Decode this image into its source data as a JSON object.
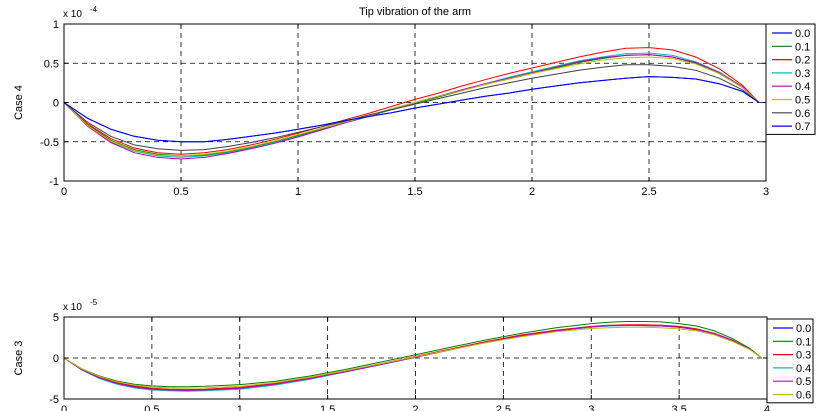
{
  "chart_data": [
    {
      "type": "line",
      "title": "Tip vibration of the arm",
      "xlabel": "",
      "ylabel": "Case 4",
      "y_scale_label": "x 10",
      "y_scale_exp": "-4",
      "xlim": [
        0,
        3
      ],
      "ylim": [
        -1,
        1
      ],
      "xticks": [
        0,
        0.5,
        1,
        1.5,
        2,
        2.5,
        3
      ],
      "xtick_labels": [
        "0",
        "0.5",
        "1",
        "1.5",
        "2",
        "2.5",
        "3"
      ],
      "yticks": [
        -1,
        -0.5,
        0,
        0.5,
        1
      ],
      "ytick_labels": [
        "-1",
        "-0.5",
        "0",
        "0.5",
        "1"
      ],
      "grid": true,
      "legend_position": "right",
      "x": [
        0,
        0.1,
        0.2,
        0.3,
        0.4,
        0.5,
        0.6,
        0.7,
        0.8,
        0.9,
        1.0,
        1.1,
        1.2,
        1.3,
        1.4,
        1.5,
        1.6,
        1.7,
        1.8,
        1.9,
        2.0,
        2.1,
        2.2,
        2.3,
        2.4,
        2.5,
        2.6,
        2.7,
        2.8,
        2.9,
        2.97
      ],
      "series": [
        {
          "name": "0.0",
          "color": "#0000ff",
          "values": [
            0,
            -0.2,
            -0.34,
            -0.43,
            -0.48,
            -0.5,
            -0.5,
            -0.47,
            -0.43,
            -0.39,
            -0.34,
            -0.29,
            -0.23,
            -0.18,
            -0.13,
            -0.07,
            -0.02,
            0.03,
            0.08,
            0.12,
            0.17,
            0.21,
            0.25,
            0.28,
            0.31,
            0.33,
            0.32,
            0.3,
            0.24,
            0.14,
            0
          ]
        },
        {
          "name": "0.1",
          "color": "#008000",
          "values": [
            0,
            -0.28,
            -0.48,
            -0.6,
            -0.66,
            -0.68,
            -0.67,
            -0.63,
            -0.57,
            -0.5,
            -0.42,
            -0.34,
            -0.26,
            -0.18,
            -0.09,
            -0.01,
            0.07,
            0.15,
            0.23,
            0.3,
            0.37,
            0.44,
            0.51,
            0.56,
            0.6,
            0.61,
            0.58,
            0.5,
            0.37,
            0.19,
            0
          ]
        },
        {
          "name": "0.2",
          "color": "#ff0000",
          "values": [
            0,
            -0.27,
            -0.46,
            -0.58,
            -0.64,
            -0.66,
            -0.64,
            -0.6,
            -0.54,
            -0.47,
            -0.39,
            -0.31,
            -0.22,
            -0.14,
            -0.05,
            0.04,
            0.12,
            0.21,
            0.29,
            0.37,
            0.44,
            0.51,
            0.58,
            0.64,
            0.69,
            0.7,
            0.67,
            0.58,
            0.43,
            0.22,
            0
          ]
        },
        {
          "name": "0.3",
          "color": "#00bfbf",
          "values": [
            0,
            -0.29,
            -0.5,
            -0.62,
            -0.68,
            -0.7,
            -0.68,
            -0.64,
            -0.58,
            -0.51,
            -0.43,
            -0.35,
            -0.26,
            -0.17,
            -0.09,
            0,
            0.08,
            0.16,
            0.24,
            0.32,
            0.39,
            0.46,
            0.53,
            0.58,
            0.62,
            0.63,
            0.6,
            0.52,
            0.39,
            0.2,
            0
          ]
        },
        {
          "name": "0.4",
          "color": "#bf00bf",
          "values": [
            0,
            -0.3,
            -0.51,
            -0.64,
            -0.7,
            -0.72,
            -0.7,
            -0.65,
            -0.59,
            -0.52,
            -0.44,
            -0.35,
            -0.26,
            -0.17,
            -0.08,
            0,
            0.08,
            0.16,
            0.24,
            0.31,
            0.38,
            0.45,
            0.52,
            0.57,
            0.6,
            0.61,
            0.58,
            0.51,
            0.38,
            0.2,
            0
          ]
        },
        {
          "name": "0.5",
          "color": "#bfbf00",
          "values": [
            0,
            -0.29,
            -0.49,
            -0.61,
            -0.67,
            -0.68,
            -0.66,
            -0.62,
            -0.56,
            -0.49,
            -0.41,
            -0.33,
            -0.25,
            -0.17,
            -0.08,
            0,
            0.08,
            0.15,
            0.23,
            0.3,
            0.37,
            0.43,
            0.49,
            0.54,
            0.57,
            0.58,
            0.56,
            0.49,
            0.37,
            0.19,
            0
          ]
        },
        {
          "name": "0.6",
          "color": "#404040",
          "values": [
            0,
            -0.25,
            -0.43,
            -0.54,
            -0.59,
            -0.61,
            -0.6,
            -0.56,
            -0.51,
            -0.45,
            -0.38,
            -0.31,
            -0.24,
            -0.16,
            -0.09,
            -0.02,
            0.05,
            0.12,
            0.19,
            0.25,
            0.31,
            0.36,
            0.41,
            0.45,
            0.48,
            0.48,
            0.46,
            0.41,
            0.31,
            0.16,
            0
          ]
        },
        {
          "name": "0.7",
          "color": "#0000ff",
          "values": [
            0,
            -0.2,
            -0.34,
            -0.43,
            -0.48,
            -0.5,
            -0.5,
            -0.47,
            -0.43,
            -0.39,
            -0.34,
            -0.29,
            -0.23,
            -0.18,
            -0.13,
            -0.07,
            -0.02,
            0.03,
            0.08,
            0.12,
            0.17,
            0.21,
            0.25,
            0.28,
            0.31,
            0.33,
            0.32,
            0.3,
            0.24,
            0.14,
            0
          ]
        }
      ]
    },
    {
      "type": "line",
      "title": "",
      "xlabel": "",
      "ylabel": "Case 3",
      "y_scale_label": "x 10",
      "y_scale_exp": "-5",
      "xlim": [
        0,
        4
      ],
      "ylim": [
        -5,
        5
      ],
      "xticks": [
        0,
        0.5,
        1,
        1.5,
        2,
        2.5,
        3,
        3.5,
        4
      ],
      "xtick_labels": [
        "0",
        "0.5",
        "1",
        "1.5",
        "2",
        "2.5",
        "3",
        "3.5",
        "4"
      ],
      "yticks": [
        -5,
        0,
        5
      ],
      "ytick_labels": [
        "-5",
        "0",
        "5"
      ],
      "grid": true,
      "legend_position": "right",
      "x": [
        0,
        0.1,
        0.2,
        0.3,
        0.4,
        0.5,
        0.6,
        0.7,
        0.8,
        0.9,
        1.0,
        1.2,
        1.4,
        1.6,
        1.8,
        2.0,
        2.2,
        2.4,
        2.6,
        2.8,
        3.0,
        3.1,
        3.2,
        3.3,
        3.4,
        3.5,
        3.6,
        3.7,
        3.8,
        3.9,
        3.97
      ],
      "series": [
        {
          "name": "0.0",
          "color": "#0000ff",
          "values": [
            0,
            -1.4,
            -2.4,
            -3.1,
            -3.5,
            -3.8,
            -3.9,
            -3.95,
            -3.9,
            -3.8,
            -3.7,
            -3.2,
            -2.5,
            -1.7,
            -0.8,
            0.1,
            1.0,
            1.9,
            2.7,
            3.3,
            3.8,
            3.95,
            4.0,
            4.0,
            3.95,
            3.8,
            3.5,
            3.0,
            2.2,
            1.1,
            0
          ]
        },
        {
          "name": "0.1",
          "color": "#008000",
          "values": [
            0,
            -1.3,
            -2.2,
            -2.8,
            -3.2,
            -3.4,
            -3.5,
            -3.5,
            -3.45,
            -3.35,
            -3.25,
            -2.85,
            -2.2,
            -1.4,
            -0.5,
            0.4,
            1.3,
            2.2,
            3.0,
            3.7,
            4.2,
            4.35,
            4.45,
            4.45,
            4.4,
            4.2,
            3.9,
            3.3,
            2.4,
            1.2,
            0
          ]
        },
        {
          "name": "0.3",
          "color": "#ff0000",
          "values": [
            0,
            -1.35,
            -2.3,
            -3.0,
            -3.4,
            -3.7,
            -3.8,
            -3.85,
            -3.8,
            -3.7,
            -3.6,
            -3.1,
            -2.4,
            -1.6,
            -0.7,
            0.2,
            1.1,
            2.0,
            2.8,
            3.4,
            3.85,
            4.0,
            4.05,
            4.05,
            4.0,
            3.85,
            3.55,
            3.0,
            2.2,
            1.1,
            0
          ]
        },
        {
          "name": "0.4",
          "color": "#00bfbf",
          "values": [
            0,
            -1.45,
            -2.5,
            -3.2,
            -3.65,
            -3.9,
            -4.0,
            -4.05,
            -4.0,
            -3.9,
            -3.8,
            -3.3,
            -2.6,
            -1.7,
            -0.8,
            0.1,
            1.0,
            1.9,
            2.7,
            3.3,
            3.75,
            3.9,
            3.95,
            3.95,
            3.9,
            3.75,
            3.45,
            2.95,
            2.15,
            1.1,
            0
          ]
        },
        {
          "name": "0.5",
          "color": "#bf00bf",
          "values": [
            0,
            -1.4,
            -2.4,
            -3.1,
            -3.55,
            -3.8,
            -3.9,
            -3.95,
            -3.9,
            -3.8,
            -3.7,
            -3.2,
            -2.5,
            -1.7,
            -0.8,
            0.1,
            1.0,
            1.9,
            2.7,
            3.3,
            3.8,
            3.95,
            4.0,
            3.95,
            3.9,
            3.75,
            3.45,
            2.95,
            2.15,
            1.1,
            0
          ]
        },
        {
          "name": "0.6",
          "color": "#bfbf00",
          "values": [
            0,
            -1.3,
            -2.25,
            -2.9,
            -3.3,
            -3.55,
            -3.65,
            -3.7,
            -3.65,
            -3.55,
            -3.45,
            -3.0,
            -2.35,
            -1.55,
            -0.7,
            0.15,
            1.0,
            1.85,
            2.6,
            3.2,
            3.6,
            3.7,
            3.75,
            3.75,
            3.7,
            3.55,
            3.3,
            2.8,
            2.05,
            1.05,
            0
          ]
        }
      ]
    }
  ]
}
